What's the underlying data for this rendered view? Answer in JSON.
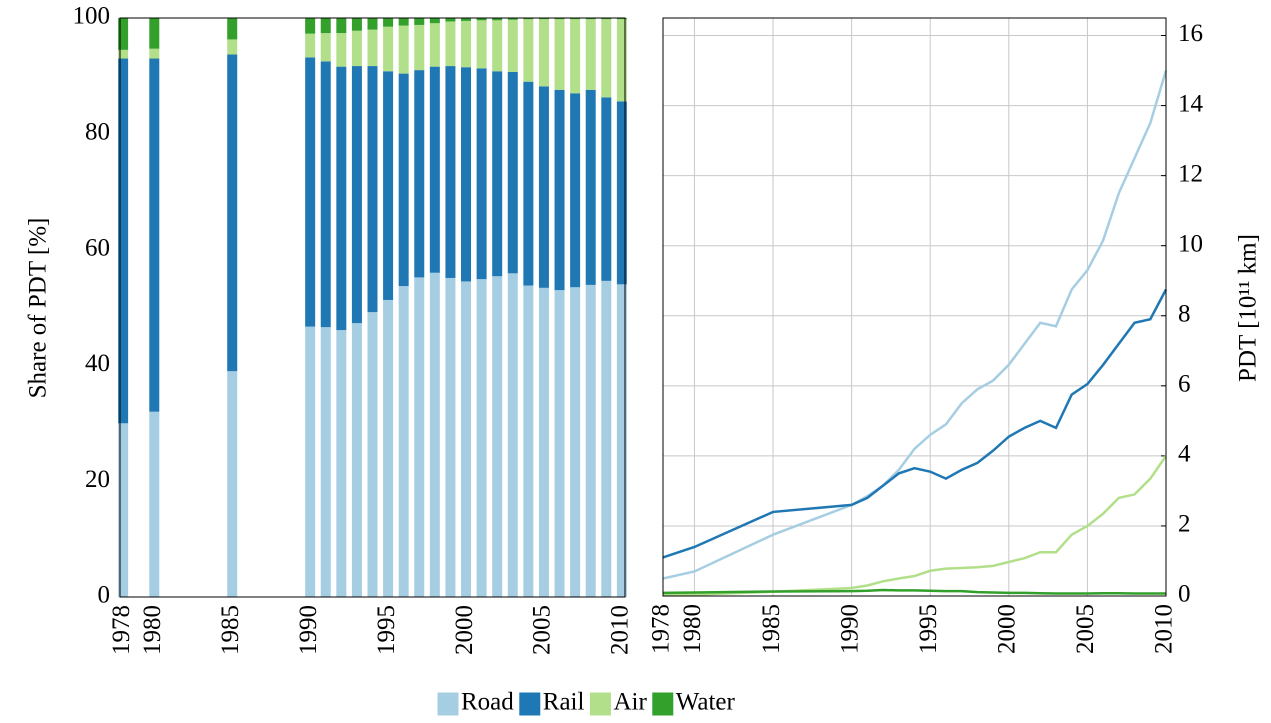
{
  "chart_data": [
    {
      "type": "bar",
      "stacked": true,
      "ylabel": "Share of PDT [%]",
      "x": [
        1978,
        1980,
        1985,
        1990,
        1991,
        1992,
        1993,
        1994,
        1995,
        1996,
        1997,
        1998,
        1999,
        2000,
        2001,
        2002,
        2003,
        2004,
        2005,
        2006,
        2007,
        2008,
        2009,
        2010
      ],
      "xlim": [
        1977.8,
        2010.2
      ],
      "xticks": [
        1978,
        1980,
        1985,
        1990,
        1995,
        2000,
        2005,
        2010
      ],
      "ylim": [
        0,
        100
      ],
      "yticks": [
        0,
        20,
        40,
        60,
        80,
        100
      ],
      "grid": false,
      "legend": "bottom",
      "series": [
        {
          "name": "Road",
          "color": "#a6cee3",
          "values": [
            30,
            32,
            39,
            46.7,
            46.6,
            46.1,
            47.3,
            49.2,
            51.3,
            53.7,
            55.2,
            56,
            55.1,
            54.5,
            54.9,
            55.4,
            55.9,
            53.8,
            53.4,
            53,
            53.5,
            53.9,
            54.6,
            54
          ]
        },
        {
          "name": "Rail",
          "color": "#1f78b4",
          "values": [
            63,
            61,
            54.7,
            46.5,
            45.9,
            45.5,
            44.4,
            42.5,
            39.5,
            36.7,
            35.8,
            35.6,
            36.6,
            37,
            36.4,
            35.4,
            34.8,
            35.2,
            34.8,
            34.6,
            33.5,
            33.7,
            31.7,
            31.6
          ]
        },
        {
          "name": "Air",
          "color": "#b2df8a",
          "values": [
            1.5,
            1.7,
            2.6,
            4.1,
            4.9,
            5.8,
            6.1,
            6.3,
            7.7,
            8.3,
            7.8,
            7.5,
            7.7,
            8.0,
            8.3,
            8.8,
            9.0,
            10.8,
            11.6,
            12.2,
            12.8,
            12.2,
            13.5,
            14.2
          ]
        },
        {
          "name": "Water",
          "color": "#33a02c",
          "values": [
            5.5,
            5.3,
            3.7,
            2.7,
            2.6,
            2.6,
            2.2,
            2.0,
            1.5,
            1.3,
            1.2,
            0.9,
            0.6,
            0.5,
            0.4,
            0.4,
            0.3,
            0.2,
            0.2,
            0.2,
            0.2,
            0.2,
            0.2,
            0.2
          ]
        }
      ]
    },
    {
      "type": "line",
      "ylabel": "PDT [10¹¹ km]",
      "y_axis_side": "right",
      "x": [
        1978,
        1980,
        1985,
        1990,
        1991,
        1992,
        1993,
        1994,
        1995,
        1996,
        1997,
        1998,
        1999,
        2000,
        2001,
        2002,
        2003,
        2004,
        2005,
        2006,
        2007,
        2008,
        2009,
        2010
      ],
      "xlim": [
        1978,
        2010
      ],
      "xticks": [
        1978,
        1980,
        1985,
        1990,
        1995,
        2000,
        2005,
        2010
      ],
      "ylim": [
        0,
        16.5
      ],
      "yticks": [
        0,
        2,
        4,
        6,
        8,
        10,
        12,
        14,
        16
      ],
      "grid": true,
      "series": [
        {
          "name": "Road",
          "color": "#a6cee3",
          "values": [
            0.5,
            0.7,
            1.75,
            2.6,
            2.85,
            3.15,
            3.6,
            4.2,
            4.6,
            4.9,
            5.5,
            5.9,
            6.15,
            6.6,
            7.2,
            7.8,
            7.7,
            8.75,
            9.3,
            10.15,
            11.5,
            12.5,
            13.5,
            15.0
          ]
        },
        {
          "name": "Rail",
          "color": "#1f78b4",
          "values": [
            1.1,
            1.4,
            2.4,
            2.6,
            2.8,
            3.15,
            3.5,
            3.65,
            3.55,
            3.35,
            3.6,
            3.8,
            4.15,
            4.55,
            4.8,
            5.0,
            4.8,
            5.75,
            6.05,
            6.6,
            7.2,
            7.8,
            7.9,
            8.75
          ]
        },
        {
          "name": "Air",
          "color": "#b2df8a",
          "values": [
            0.03,
            0.04,
            0.12,
            0.23,
            0.3,
            0.42,
            0.5,
            0.57,
            0.72,
            0.78,
            0.8,
            0.82,
            0.86,
            0.97,
            1.08,
            1.25,
            1.25,
            1.75,
            2.0,
            2.35,
            2.8,
            2.9,
            3.35,
            4.0
          ]
        },
        {
          "name": "Water",
          "color": "#33a02c",
          "values": [
            0.09,
            0.1,
            0.13,
            0.14,
            0.15,
            0.17,
            0.16,
            0.16,
            0.15,
            0.14,
            0.14,
            0.11,
            0.1,
            0.09,
            0.09,
            0.08,
            0.07,
            0.07,
            0.07,
            0.08,
            0.08,
            0.07,
            0.07,
            0.07
          ]
        }
      ]
    }
  ]
}
